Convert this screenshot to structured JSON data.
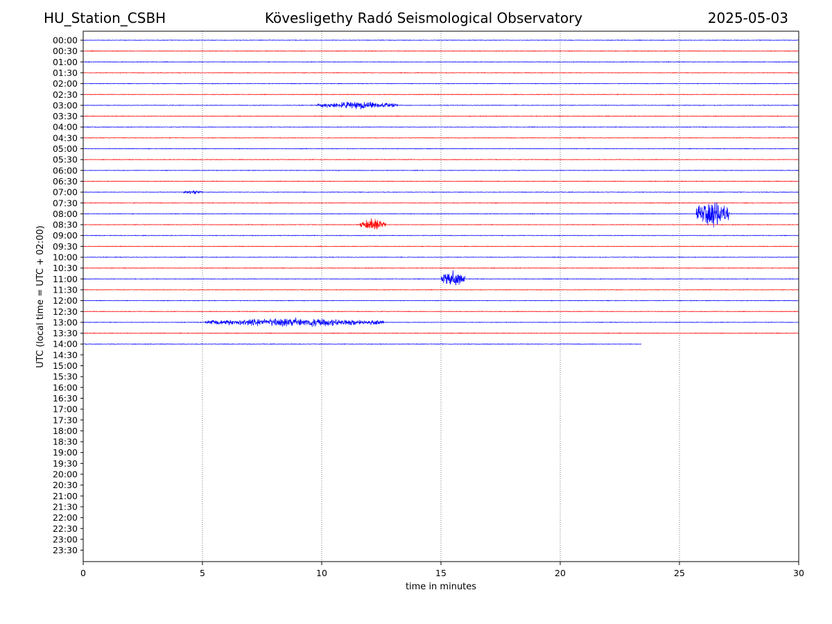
{
  "header": {
    "station": "HU_Station_CSBH",
    "title": "Kövesligethy Radó Seismological Observatory",
    "date": "2025-05-03"
  },
  "chart_data": {
    "type": "line",
    "chart_kind": "helicorder",
    "xlabel": "time in minutes",
    "ylabel": "UTC (local time = UTC + 02:00)",
    "xlim": [
      0,
      30
    ],
    "x_ticks": [
      0,
      5,
      10,
      15,
      20,
      25,
      30
    ],
    "vertical_grid": "dotted at x ticks",
    "row_labels": [
      "00:00",
      "00:30",
      "01:00",
      "01:30",
      "02:00",
      "02:30",
      "03:00",
      "03:30",
      "04:00",
      "04:30",
      "05:00",
      "05:30",
      "06:00",
      "06:30",
      "07:00",
      "07:30",
      "08:00",
      "08:30",
      "09:00",
      "09:30",
      "10:00",
      "10:30",
      "11:00",
      "11:30",
      "12:00",
      "12:30",
      "13:00",
      "13:30",
      "14:00",
      "14:30",
      "15:00",
      "15:30",
      "16:00",
      "16:30",
      "17:00",
      "17:30",
      "18:00",
      "18:30",
      "19:00",
      "19:30",
      "20:00",
      "20:30",
      "21:00",
      "21:30",
      "22:00",
      "22:30",
      "23:00",
      "23:30"
    ],
    "trace_colors": {
      "full_hour": "#0000ff",
      "half_hour": "#ff0000"
    },
    "recorded_rows": 29,
    "last_row_end_minute": 23.4,
    "events": [
      {
        "row": "03:00",
        "start": 9.8,
        "end": 13.2,
        "amplitude": 0.25
      },
      {
        "row": "07:00",
        "start": 4.2,
        "end": 5.0,
        "amplitude": 0.15
      },
      {
        "row": "08:00",
        "start": 25.7,
        "end": 27.1,
        "amplitude": 1.0
      },
      {
        "row": "08:30",
        "start": 11.6,
        "end": 12.7,
        "amplitude": 0.4
      },
      {
        "row": "11:00",
        "start": 15.0,
        "end": 16.0,
        "amplitude": 0.55
      },
      {
        "row": "13:00",
        "start": 5.1,
        "end": 12.6,
        "amplitude": 0.3
      }
    ]
  },
  "colors": {
    "axis": "#000000",
    "grid": "#555555"
  }
}
